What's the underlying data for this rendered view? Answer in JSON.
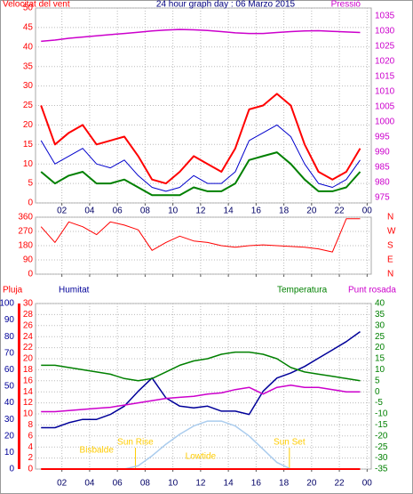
{
  "chart_data": [
    {
      "type": "line",
      "title": "24 hour graph day : 06 Marzo 2015",
      "ylabel": "Velocitat del vent",
      "y2label": "Pressió",
      "ycolor": "#ff0000",
      "y2color": "#cc00cc",
      "grid": true,
      "x": [
        0.5,
        1.5,
        2.5,
        3.5,
        4.5,
        5.5,
        6.5,
        7.5,
        8.5,
        9.5,
        10.5,
        11.5,
        12.5,
        13.5,
        14.5,
        15.5,
        16.5,
        17.5,
        18.5,
        19.5,
        20.5,
        21.5,
        22.5,
        23.5
      ],
      "xlim": [
        0.1,
        24.3
      ],
      "xticks": [
        {
          "value": 2,
          "label": "02"
        },
        {
          "value": 4,
          "label": "04"
        },
        {
          "value": 6,
          "label": "06"
        },
        {
          "value": 8,
          "label": "08"
        },
        10,
        12,
        14,
        16,
        18,
        20,
        22,
        {
          "value": 24,
          "label": "00"
        }
      ],
      "ylim": [
        0,
        50
      ],
      "yticks": [
        0,
        5,
        10,
        15,
        20,
        25,
        30,
        35,
        40,
        45,
        50
      ],
      "y2lim": [
        973.2,
        1037.6
      ],
      "y2ticks": [
        975,
        980,
        985,
        990,
        995,
        1000,
        1005,
        1010,
        1015,
        1020,
        1025,
        1030,
        1035
      ],
      "series": [
        {
          "color": "#ff0000",
          "width": 2,
          "values": [
            25,
            15,
            18,
            20,
            15,
            16,
            17,
            12,
            6,
            5,
            8,
            12,
            10,
            8,
            14,
            24,
            25,
            28,
            25,
            15,
            8,
            6,
            8,
            14
          ]
        },
        {
          "color": "#008000",
          "width": 2,
          "values": [
            8,
            5,
            7,
            8,
            5,
            5,
            6,
            4,
            2,
            2,
            2,
            4,
            3,
            3,
            5,
            11,
            12,
            13,
            10,
            6,
            3,
            3,
            4,
            8
          ]
        },
        {
          "color": "#0000cc",
          "width": 1,
          "values": [
            16,
            10,
            12,
            14,
            10,
            9,
            11,
            7,
            4,
            3,
            4,
            7,
            5,
            5,
            8,
            16,
            18,
            20,
            17,
            10,
            5,
            4,
            6,
            11
          ]
        },
        {
          "color": "#cc00cc",
          "width": 1.5,
          "axis": "y2",
          "values": [
            1026.6,
            1027,
            1027.6,
            1028,
            1028.4,
            1028.8,
            1029.2,
            1029.6,
            1030,
            1030.3,
            1030.5,
            1030.4,
            1030.2,
            1029.8,
            1029.4,
            1029.2,
            1029.2,
            1029.5,
            1029.8,
            1030,
            1030.1,
            1029.9,
            1029.7,
            1029.5
          ]
        }
      ]
    },
    {
      "type": "line",
      "ycolor": "#ff0000",
      "y2color": "#ff0000",
      "grid": true,
      "xtick_labels": false,
      "x": [
        0.5,
        1.5,
        2.5,
        3.5,
        4.5,
        5.5,
        6.5,
        7.5,
        8.5,
        9.5,
        10.5,
        11.5,
        12.5,
        13.5,
        14.5,
        15.5,
        16.5,
        17.5,
        18.5,
        19.5,
        20.5,
        21.5,
        22.5,
        23.5
      ],
      "xlim": [
        0.1,
        24.3
      ],
      "xticks": [
        2,
        4,
        6,
        8,
        10,
        12,
        14,
        16,
        18,
        20,
        22,
        24
      ],
      "ylim": [
        0,
        360
      ],
      "yticks": [
        0,
        90,
        180,
        270,
        360
      ],
      "y2lim": [
        0,
        360
      ],
      "y2ticks": [
        {
          "value": 360,
          "label": "N"
        },
        {
          "value": 270,
          "label": "W"
        },
        {
          "value": 180,
          "label": "S"
        },
        {
          "value": 90,
          "label": "E"
        },
        {
          "value": 0,
          "label": "N"
        }
      ],
      "series": [
        {
          "color": "#ff0000",
          "width": 1,
          "values": [
            300,
            200,
            330,
            300,
            250,
            330,
            310,
            280,
            150,
            200,
            240,
            210,
            200,
            180,
            170,
            180,
            185,
            180,
            175,
            170,
            160,
            140,
            350,
            350
          ]
        }
      ]
    },
    {
      "type": "line",
      "ylabel": "Pluja",
      "ycolor": "#ff0000",
      "y3color": "#000099",
      "y2color": "#008000",
      "grid": true,
      "x": [
        0.5,
        1.5,
        2.5,
        3.5,
        4.5,
        5.5,
        6.5,
        7.5,
        8.5,
        9.5,
        10.5,
        11.5,
        12.5,
        13.5,
        14.5,
        15.5,
        16.5,
        17.5,
        18.5,
        19.5,
        20.5,
        21.5,
        22.5,
        23.5
      ],
      "xlim": [
        0.1,
        24.3
      ],
      "xticks": [
        {
          "value": 2,
          "label": "02"
        },
        {
          "value": 4,
          "label": "04"
        },
        {
          "value": 6,
          "label": "06"
        },
        {
          "value": 8,
          "label": "08"
        },
        10,
        12,
        14,
        16,
        18,
        20,
        22,
        {
          "value": 24,
          "label": "00"
        }
      ],
      "ylim": [
        0,
        30
      ],
      "yticks": [
        0,
        2,
        4,
        6,
        8,
        10,
        12,
        14,
        16,
        18,
        20,
        22,
        24,
        26,
        28,
        30
      ],
      "y3lim": [
        0,
        100
      ],
      "y3ticks": [
        0,
        10,
        20,
        30,
        40,
        50,
        60,
        70,
        80,
        90,
        100
      ],
      "y2lim": [
        -35,
        40
      ],
      "y2ticks": [
        -35,
        -30,
        -25,
        -20,
        -15,
        -10,
        -5,
        0,
        5,
        10,
        15,
        20,
        25,
        30,
        35,
        40
      ],
      "series": [
        {
          "color": "#aaccee",
          "width": 1.5,
          "axis": "y3",
          "values": [
            0,
            0,
            0,
            0,
            0,
            0,
            0,
            2,
            8,
            15,
            21,
            26,
            29,
            29,
            26,
            20,
            12,
            4,
            0,
            0,
            0,
            0,
            0,
            0
          ]
        },
        {
          "color": "#ff0000",
          "width": 2,
          "values": [
            0,
            0,
            0,
            0,
            0,
            0,
            0,
            0,
            0,
            0,
            0,
            0,
            0,
            0,
            0,
            0,
            0,
            0,
            0,
            0,
            0,
            0,
            0,
            0
          ]
        },
        {
          "name": "Humitat",
          "color": "#000099",
          "width": 1.5,
          "axis": "y3",
          "values": [
            25,
            25,
            28,
            30,
            30,
            33,
            38,
            47,
            55,
            43,
            38,
            37,
            38,
            35,
            35,
            33,
            47,
            55,
            58,
            62,
            67,
            72,
            77,
            83
          ]
        },
        {
          "name": "Temperatura",
          "color": "#008000",
          "width": 1.5,
          "axis": "y2",
          "values": [
            12,
            12,
            11,
            10,
            9,
            8,
            6,
            5,
            6,
            9,
            12,
            14,
            15,
            17,
            18,
            18,
            17,
            15,
            11,
            9,
            8,
            7,
            6,
            5
          ]
        },
        {
          "name": "Punt rosada",
          "color": "#cc00cc",
          "width": 1.5,
          "axis": "y2",
          "values": [
            -9,
            -9,
            -8.5,
            -8,
            -7.5,
            -7,
            -6,
            -5,
            -4,
            -3,
            -2.5,
            -2,
            -1,
            -0.5,
            1,
            2,
            -1,
            2,
            3,
            2,
            2,
            1,
            0,
            0
          ]
        }
      ],
      "annotations": [
        {
          "text": "Bisbalde",
          "x": 4.5,
          "line": false
        },
        {
          "text": "Sun Rise",
          "x": 7.3,
          "line": true
        },
        {
          "text": "Lowtide",
          "x": 12,
          "line": false
        },
        {
          "text": "Sun Set",
          "x": 18.4,
          "line": true
        }
      ]
    }
  ]
}
